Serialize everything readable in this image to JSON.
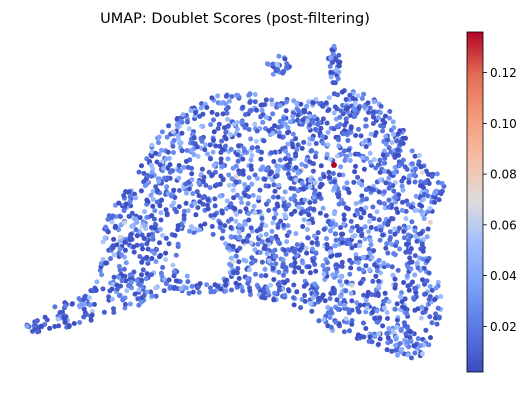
{
  "chart_data": {
    "type": "scatter",
    "title": "UMAP: Doublet Scores (post-filtering)",
    "xlabel": "",
    "ylabel": "",
    "axes_visible": false,
    "colormap": "coolwarm",
    "colorbar": {
      "label": "",
      "range": [
        0.002,
        0.136
      ],
      "ticks": [
        "0.02",
        "0.04",
        "0.06",
        "0.08",
        "0.10",
        "0.12"
      ],
      "tick_values": [
        0.02,
        0.04,
        0.06,
        0.08,
        0.1,
        0.12
      ]
    },
    "point_count_estimate": 2200,
    "notable_points": [
      {
        "description": "single high-score cell",
        "score": 0.136,
        "color": "#b40426"
      }
    ],
    "colors": {
      "low": "#3b4cc0",
      "mid": "#dddddd",
      "high": "#b40426"
    }
  }
}
